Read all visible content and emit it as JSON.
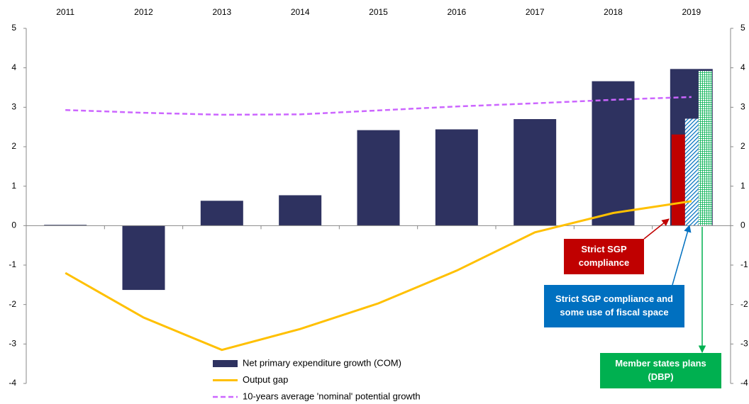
{
  "chart_data": {
    "type": "bar",
    "categories": [
      "2011",
      "2012",
      "2013",
      "2014",
      "2015",
      "2016",
      "2017",
      "2018",
      "2019"
    ],
    "series": [
      {
        "name": "Net primary expenditure growth (COM)",
        "type": "bar",
        "color": "#2e3260",
        "values": [
          0.02,
          -1.63,
          0.63,
          0.77,
          2.42,
          2.44,
          2.7,
          3.66,
          3.97
        ]
      },
      {
        "name": "Output gap",
        "type": "line",
        "color": "#ffc000",
        "values": [
          -1.2,
          -2.33,
          -3.15,
          -2.62,
          -1.97,
          -1.14,
          -0.17,
          0.32,
          0.62
        ]
      },
      {
        "name": "10-years average 'nominal' potential growth",
        "type": "dashed-line",
        "color": "#cc66ff",
        "values": [
          2.93,
          2.86,
          2.81,
          2.82,
          2.92,
          3.02,
          3.1,
          3.19,
          3.26
        ]
      }
    ],
    "annotations": [
      {
        "lines": [
          "Strict SGP",
          "compliance"
        ],
        "value": 2.31,
        "color": "#c00000",
        "pattern": "solid"
      },
      {
        "lines": [
          "Strict SGP compliance and",
          "some use of fiscal space"
        ],
        "value": 2.71,
        "color": "#0070c0",
        "pattern": "hatch"
      },
      {
        "lines": [
          "Member states plans",
          "(DBP)"
        ],
        "value": 3.92,
        "color": "#00b050",
        "pattern": "grid"
      }
    ],
    "ylim": [
      -4,
      5
    ],
    "yticks": [
      -4,
      -3,
      -2,
      -1,
      0,
      1,
      2,
      3,
      4,
      5
    ],
    "y2lim": [
      -4,
      5
    ],
    "y2ticks": [
      -4,
      -3,
      -2,
      -1,
      0,
      1,
      2,
      3,
      4,
      5
    ],
    "grid": false
  }
}
